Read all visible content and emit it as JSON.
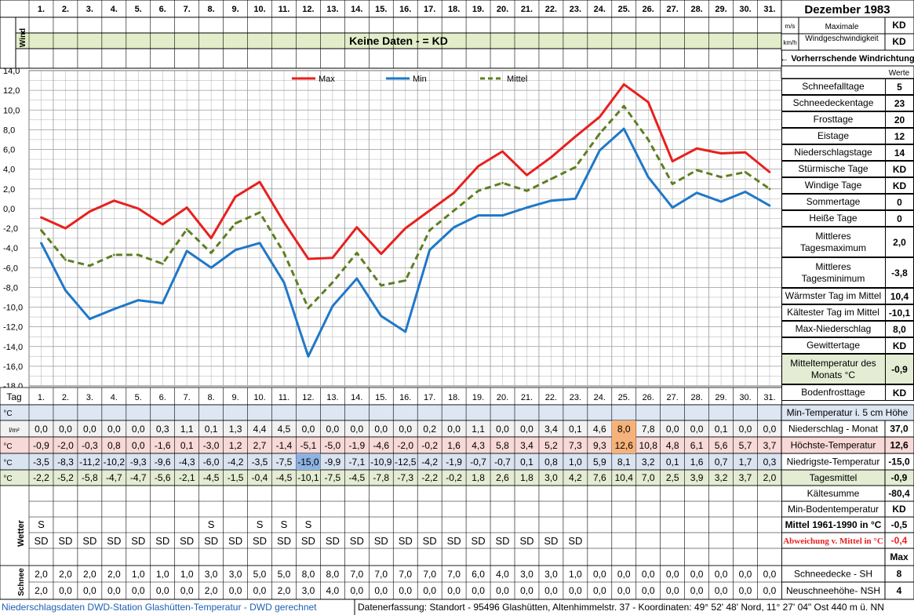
{
  "title": "Dezember 1983",
  "days": [
    "1.",
    "2.",
    "3.",
    "4.",
    "5.",
    "6.",
    "7.",
    "8.",
    "9.",
    "10.",
    "11.",
    "12.",
    "13.",
    "14.",
    "15.",
    "16.",
    "17.",
    "18.",
    "19.",
    "20.",
    "21.",
    "22.",
    "23.",
    "24.",
    "25.",
    "26.",
    "27.",
    "28.",
    "29.",
    "30.",
    "31."
  ],
  "wind": {
    "label": "Wind",
    "unit_ms": "m/s",
    "unit_kmh": "km/h",
    "max_label": "Maximale Windgeschwindigkeit",
    "max_ms": "KD",
    "max_kmh": "KD",
    "no_data": "Keine Daten -  = KD",
    "direction_label": "← Vorherrschende Windrichtung"
  },
  "stats_header": "Werte",
  "stats": [
    {
      "label": "Schneefalltage",
      "value": "5"
    },
    {
      "label": "Schneedeckentage",
      "value": "23"
    },
    {
      "label": "Frosttage",
      "value": "20"
    },
    {
      "label": "Eistage",
      "value": "12"
    },
    {
      "label": "Niederschlagstage",
      "value": "14"
    },
    {
      "label": "Stürmische Tage",
      "value": "KD"
    },
    {
      "label": "Windige Tage",
      "value": "KD"
    },
    {
      "label": "Sommertage",
      "value": "0"
    },
    {
      "label": "Heiße Tage",
      "value": "0"
    },
    {
      "label": "Mittleres Tagesmaximum",
      "value": "2,0"
    },
    {
      "label": "Mittleres Tagesminimum",
      "value": "-3,8"
    },
    {
      "label": "Wärmster Tag im Mittel",
      "value": "10,4"
    },
    {
      "label": "Kältester Tag im Mittel",
      "value": "-10,1"
    },
    {
      "label": "Max-Niederschlag",
      "value": "8,0"
    },
    {
      "label": "Gewittertage",
      "value": "KD"
    },
    {
      "label": "Mitteltemperatur des Monats °C",
      "value": "-0,9"
    },
    {
      "label": "Bodenfrosttage",
      "value": "KD"
    }
  ],
  "table": {
    "tag_label": "Tag",
    "min5_unit": "°C",
    "min5_label": "Min-Temperatur i. 5 cm Höhe",
    "precip_unit": "l/m²",
    "precip_label": "Niederschlag - Monat",
    "precip_total": "37,0",
    "precip": [
      "0,0",
      "0,0",
      "0,0",
      "0,0",
      "0,0",
      "0,3",
      "1,1",
      "0,1",
      "1,3",
      "4,4",
      "4,5",
      "0,0",
      "0,0",
      "0,0",
      "0,0",
      "0,0",
      "0,2",
      "0,0",
      "1,1",
      "0,0",
      "0,0",
      "3,4",
      "0,1",
      "4,6",
      "8,0",
      "7,8",
      "0,0",
      "0,0",
      "0,1",
      "0,0",
      "0,0"
    ],
    "max_unit": "°C",
    "max_label": "Höchste-Temperatur",
    "max_value": "12,6",
    "tmax": [
      "-0,9",
      "-2,0",
      "-0,3",
      "0,8",
      "0,0",
      "-1,6",
      "0,1",
      "-3,0",
      "1,2",
      "2,7",
      "-1,4",
      "-5,1",
      "-5,0",
      "-1,9",
      "-4,6",
      "-2,0",
      "-0,2",
      "1,6",
      "4,3",
      "5,8",
      "3,4",
      "5,2",
      "7,3",
      "9,3",
      "12,6",
      "10,8",
      "4,8",
      "6,1",
      "5,6",
      "5,7",
      "3,7"
    ],
    "min_unit": "°C",
    "min_label": "Niedrigste-Temperatur",
    "min_value": "-15,0",
    "tmin": [
      "-3,5",
      "-8,3",
      "-11,2",
      "-10,2",
      "-9,3",
      "-9,6",
      "-4,3",
      "-6,0",
      "-4,2",
      "-3,5",
      "-7,5",
      "-15,0",
      "-9,9",
      "-7,1",
      "-10,9",
      "-12,5",
      "-4,2",
      "-1,9",
      "-0,7",
      "-0,7",
      "0,1",
      "0,8",
      "1,0",
      "5,9",
      "8,1",
      "3,2",
      "0,1",
      "1,6",
      "0,7",
      "1,7",
      "0,3"
    ],
    "mean_unit": "°C",
    "mean_label": "Tagesmittel",
    "mean_value": "-0,9",
    "tmean": [
      "-2,2",
      "-5,2",
      "-5,8",
      "-4,7",
      "-4,7",
      "-5,6",
      "-2,1",
      "-4,5",
      "-1,5",
      "-0,4",
      "-4,5",
      "-10,1",
      "-7,5",
      "-4,5",
      "-7,8",
      "-7,3",
      "-2,2",
      "-0,2",
      "1,8",
      "2,6",
      "1,8",
      "3,0",
      "4,2",
      "7,6",
      "10,4",
      "7,0",
      "2,5",
      "3,9",
      "3,2",
      "3,7",
      "2,0"
    ],
    "kaeltesumme_label": "Kältesumme",
    "kaeltesumme_value": "-80,4",
    "minboden_label": "Min-Bodentemperatur",
    "minboden_value": "KD",
    "mittel_label": "Mittel 1961-1990 in °C",
    "mittel_value": "-0,5",
    "abweichung_label": "Abweichung v. Mittel in °C",
    "abweichung_value": "-0,4",
    "max_header": "Max",
    "wetter_label": "Wetter",
    "wetter_s": [
      "S",
      "",
      "",
      "",
      "",
      "",
      "",
      "S",
      "",
      "S",
      "S",
      "S",
      "",
      "",
      "",
      "",
      "",
      "",
      "",
      "",
      "",
      "",
      "",
      "",
      "",
      "",
      "",
      "",
      "",
      "",
      ""
    ],
    "wetter_sd": [
      "SD",
      "SD",
      "SD",
      "SD",
      "SD",
      "SD",
      "SD",
      "SD",
      "SD",
      "SD",
      "SD",
      "SD",
      "SD",
      "SD",
      "SD",
      "SD",
      "SD",
      "SD",
      "SD",
      "SD",
      "SD",
      "SD",
      "SD",
      "",
      "",
      "",
      "",
      "",
      "",
      "",
      ""
    ],
    "schnee_label": "Schnee",
    "snow_sh_label": "Schneedecke -  SH",
    "snow_sh_value": "8",
    "snow_sh": [
      "2,0",
      "2,0",
      "2,0",
      "2,0",
      "1,0",
      "1,0",
      "1,0",
      "3,0",
      "3,0",
      "5,0",
      "5,0",
      "8,0",
      "8,0",
      "7,0",
      "7,0",
      "7,0",
      "7,0",
      "7,0",
      "6,0",
      "4,0",
      "3,0",
      "3,0",
      "1,0",
      "0,0",
      "0,0",
      "0,0",
      "0,0",
      "0,0",
      "0,0",
      "0,0",
      "0,0"
    ],
    "snow_nsh_label": "Neuschneehöhe- NSH",
    "snow_nsh_value": "4",
    "snow_nsh": [
      "2,0",
      "0,0",
      "0,0",
      "0,0",
      "0,0",
      "0,0",
      "0,0",
      "2,0",
      "0,0",
      "0,0",
      "2,0",
      "3,0",
      "4,0",
      "0,0",
      "0,0",
      "0,0",
      "0,0",
      "0,0",
      "0,0",
      "0,0",
      "0,0",
      "0,0",
      "0,0",
      "0,0",
      "0,0",
      "0,0",
      "0,0",
      "0,0",
      "0,0",
      "0,0",
      "0,0"
    ]
  },
  "footer": {
    "left": "Niederschlagsdaten DWD-Station Glashütten-Temperatur -  DWD gerechnet",
    "right": "Datenerfassung: Standort -  95496  Glashütten, Altenhimmelstr. 37 - Koordinaten: 49° 52' 48' Nord,  11° 27' 04\" Ost  440 m ü. NN"
  },
  "colors": {
    "max": "#e8201e",
    "min": "#1f78c8",
    "mean": "#5f7f22",
    "wind_bar": "#e3edc9",
    "precip_row": "#f2f2f2",
    "max_row": "#f7d9d7",
    "min_row": "#dae3f0",
    "mean_row": "#e4ecd3",
    "highlight_precip": "#f5b27a",
    "highlight_max": "#f5b27a",
    "highlight_min": "#8eb2e2"
  },
  "chart_data": {
    "type": "line",
    "x": [
      1,
      2,
      3,
      4,
      5,
      6,
      7,
      8,
      9,
      10,
      11,
      12,
      13,
      14,
      15,
      16,
      17,
      18,
      19,
      20,
      21,
      22,
      23,
      24,
      25,
      26,
      27,
      28,
      29,
      30,
      31
    ],
    "categories": [
      "1.",
      "2.",
      "3.",
      "4.",
      "5.",
      "6.",
      "7.",
      "8.",
      "9.",
      "10.",
      "11.",
      "12.",
      "13.",
      "14.",
      "15.",
      "16.",
      "17.",
      "18.",
      "19.",
      "20.",
      "21.",
      "22.",
      "23.",
      "24.",
      "25.",
      "26.",
      "27.",
      "28.",
      "29.",
      "30.",
      "31."
    ],
    "series": [
      {
        "name": "Max",
        "color": "#e8201e",
        "values": [
          -0.9,
          -2.0,
          -0.3,
          0.8,
          0.0,
          -1.6,
          0.1,
          -3.0,
          1.2,
          2.7,
          -1.4,
          -5.1,
          -5.0,
          -1.9,
          -4.6,
          -2.0,
          -0.2,
          1.6,
          4.3,
          5.8,
          3.4,
          5.2,
          7.3,
          9.3,
          12.6,
          10.8,
          4.8,
          6.1,
          5.6,
          5.7,
          3.7
        ]
      },
      {
        "name": "Min",
        "color": "#1f78c8",
        "values": [
          -3.5,
          -8.3,
          -11.2,
          -10.2,
          -9.3,
          -9.6,
          -4.3,
          -6.0,
          -4.2,
          -3.5,
          -7.5,
          -15.0,
          -9.9,
          -7.1,
          -10.9,
          -12.5,
          -4.2,
          -1.9,
          -0.7,
          -0.7,
          0.1,
          0.8,
          1.0,
          5.9,
          8.1,
          3.2,
          0.1,
          1.6,
          0.7,
          1.7,
          0.3
        ]
      },
      {
        "name": "Mittel",
        "color": "#5f7f22",
        "dashed": true,
        "values": [
          -2.2,
          -5.2,
          -5.8,
          -4.7,
          -4.7,
          -5.6,
          -2.1,
          -4.5,
          -1.5,
          -0.4,
          -4.5,
          -10.1,
          -7.5,
          -4.5,
          -7.8,
          -7.3,
          -2.2,
          -0.2,
          1.8,
          2.6,
          1.8,
          3.0,
          4.2,
          7.6,
          10.4,
          7.0,
          2.5,
          3.9,
          3.2,
          3.7,
          2.0
        ]
      }
    ],
    "yticks": [
      "14,0",
      "12,0",
      "10,0",
      "8,0",
      "6,0",
      "4,0",
      "2,0",
      "0,0",
      "-2,0",
      "-4,0",
      "-6,0",
      "-8,0",
      "-10,0",
      "-12,0",
      "-14,0",
      "-16,0",
      "-18,0"
    ],
    "ylim": [
      -18,
      14
    ],
    "grid": true,
    "legend": "top-center"
  }
}
